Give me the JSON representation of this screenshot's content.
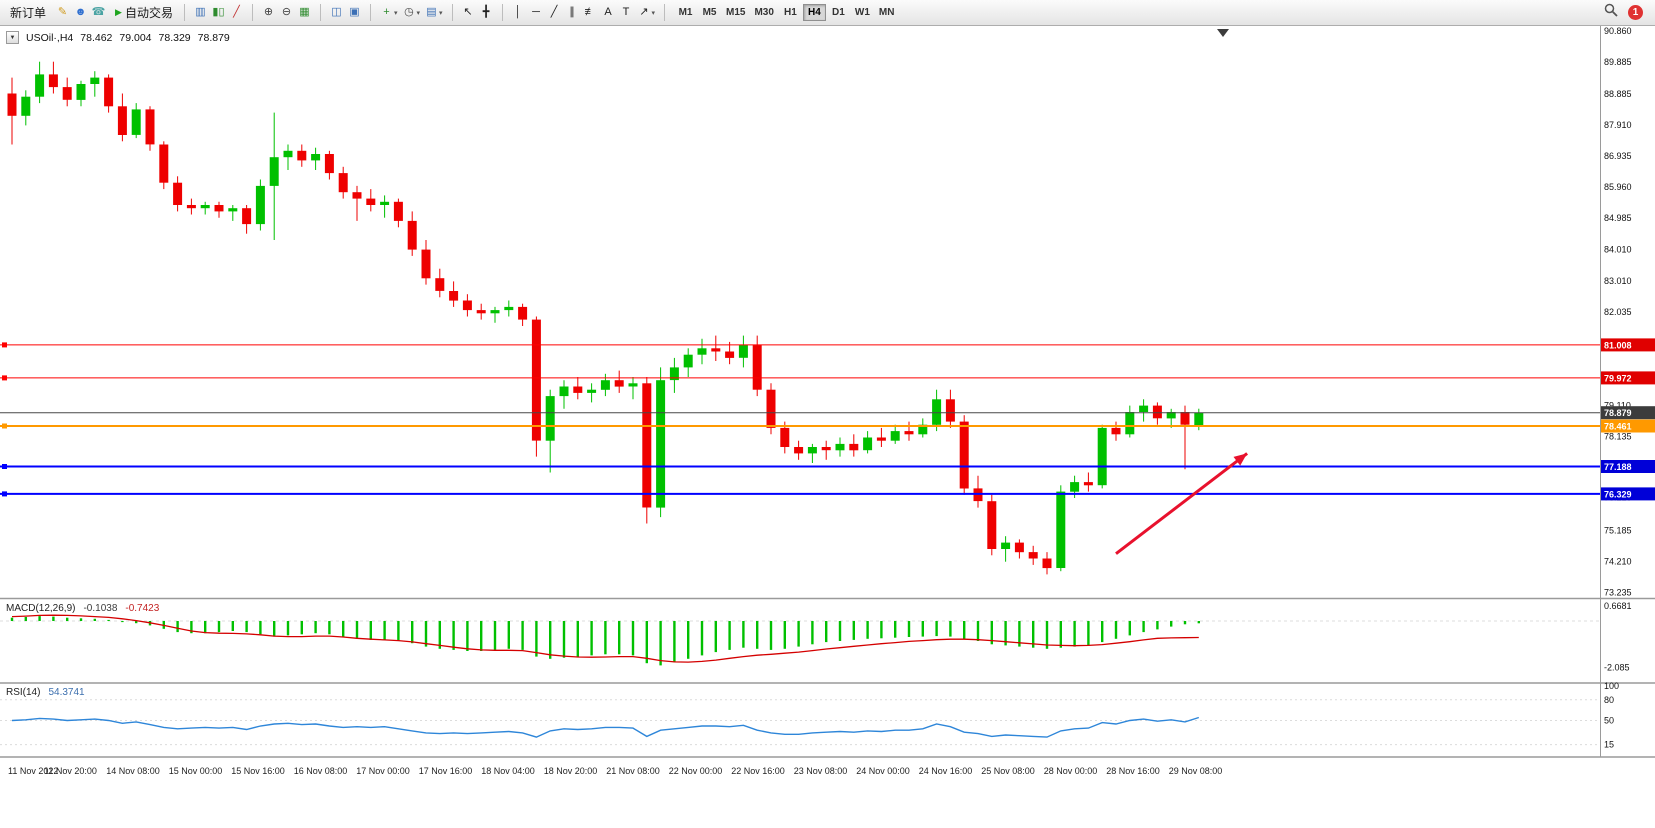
{
  "window": {
    "badge_count": "1"
  },
  "toolbar": {
    "new_order_label": "新订单",
    "auto_trading_label": "自动交易",
    "icon_groups": [
      {
        "name": "quick",
        "icons": [
          "metaeditor",
          "community",
          "support"
        ]
      },
      {
        "name": "chart-type",
        "icons": [
          "bar-chart",
          "candlesticks",
          "line-chart"
        ]
      },
      {
        "name": "zoom",
        "icons": [
          "zoom-in",
          "zoom-out",
          "tile-windows"
        ]
      },
      {
        "name": "layout",
        "icons": [
          "arrange-charts",
          "cascade-charts"
        ]
      },
      {
        "name": "chart-tools",
        "icons": [
          "new-chart",
          "period-clock",
          "chart-template"
        ]
      },
      {
        "name": "pointer",
        "icons": [
          "cursor",
          "crosshair"
        ]
      },
      {
        "name": "draw",
        "icons": [
          "vertical-line-tool",
          "horizontal-line-tool",
          "trendline-tool",
          "channel-tool",
          "fibonacci-tool",
          "text-tool",
          "text-label-tool",
          "arrows-tool"
        ]
      }
    ],
    "timeframes": [
      {
        "label": "M1",
        "active": false
      },
      {
        "label": "M5",
        "active": false
      },
      {
        "label": "M15",
        "active": false
      },
      {
        "label": "M30",
        "active": false
      },
      {
        "label": "H1",
        "active": false
      },
      {
        "label": "H4",
        "active": true
      },
      {
        "label": "D1",
        "active": false
      },
      {
        "label": "W1",
        "active": false
      },
      {
        "label": "MN",
        "active": false
      }
    ]
  },
  "header": {
    "symbol": "USOil·,H4",
    "open": "78.462",
    "high": "79.004",
    "low": "78.329",
    "close": "78.879"
  },
  "indicators": {
    "macd": {
      "label": "MACD(12,26,9)",
      "value1": "-0.1038",
      "value2": "-0.7423"
    },
    "rsi": {
      "label": "RSI(14)",
      "value": "54.3741"
    }
  },
  "colors": {
    "candle_up": "#00C000",
    "candle_down": "#EE0000",
    "macd_hist": "#00C000",
    "macd_signal": "#D40000",
    "rsi_line": "#2E86D9",
    "arrow": "#E8112D",
    "line_red": "#FF0000",
    "line_orange": "#FF9900",
    "line_blue": "#0000FF",
    "price_line": "#484848"
  },
  "chart_data": {
    "type": "candlestick",
    "symbol": "USOil",
    "period": "H4",
    "x_labels": [
      "11 Nov 2022",
      "11 Nov 20:00",
      "14 Nov 08:00",
      "15 Nov 00:00",
      "15 Nov 16:00",
      "16 Nov 08:00",
      "17 Nov 00:00",
      "17 Nov 16:00",
      "18 Nov 04:00",
      "18 Nov 20:00",
      "21 Nov 08:00",
      "22 Nov 00:00",
      "22 Nov 16:00",
      "23 Nov 08:00",
      "24 Nov 00:00",
      "24 Nov 16:00",
      "25 Nov 08:00",
      "28 Nov 00:00",
      "28 Nov 16:00",
      "29 Nov 08:00"
    ],
    "main": {
      "ylim": [
        73.06,
        91.02
      ],
      "price_labels": [
        "90.860",
        "89.885",
        "88.885",
        "87.910",
        "86.935",
        "85.960",
        "84.985",
        "84.010",
        "83.010",
        "82.035",
        "79.110",
        "78.135",
        "76.210",
        "75.185",
        "74.210",
        "73.235"
      ],
      "levels": [
        {
          "price": 81.008,
          "label": "81.008",
          "color": "#FF0000",
          "tag_bg": "#E00000",
          "width": 1,
          "marker": true
        },
        {
          "price": 79.972,
          "label": "79.972",
          "color": "#FF0000",
          "tag_bg": "#E00000",
          "width": 1,
          "marker": true
        },
        {
          "price": 78.879,
          "label": "78.879",
          "color": "#484848",
          "tag_bg": "#3C3C3C",
          "width": 1,
          "marker": false
        },
        {
          "price": 78.461,
          "label": "78.461",
          "color": "#FF9900",
          "tag_bg": "#FF9900",
          "width": 2,
          "marker": true
        },
        {
          "price": 77.188,
          "label": "77.188",
          "color": "#0000FF",
          "tag_bg": "#0000D8",
          "width": 2,
          "marker": true
        },
        {
          "price": 76.329,
          "label": "76.329",
          "color": "#0000FF",
          "tag_bg": "#0000D8",
          "width": 2,
          "marker": true
        }
      ],
      "arrow": {
        "from_index": 80,
        "from_price": 74.45,
        "to_index": 89.5,
        "to_price": 77.6
      },
      "candles": [
        [
          88.9,
          89.4,
          87.3,
          88.2
        ],
        [
          88.2,
          89.0,
          87.9,
          88.8
        ],
        [
          88.8,
          89.9,
          88.6,
          89.5
        ],
        [
          89.5,
          89.9,
          88.9,
          89.1
        ],
        [
          89.1,
          89.4,
          88.5,
          88.7
        ],
        [
          88.7,
          89.3,
          88.5,
          89.2
        ],
        [
          89.2,
          89.6,
          88.8,
          89.4
        ],
        [
          89.4,
          89.5,
          88.3,
          88.5
        ],
        [
          88.5,
          88.9,
          87.4,
          87.6
        ],
        [
          87.6,
          88.6,
          87.5,
          88.4
        ],
        [
          88.4,
          88.5,
          87.1,
          87.3
        ],
        [
          87.3,
          87.4,
          85.9,
          86.1
        ],
        [
          86.1,
          86.3,
          85.2,
          85.4
        ],
        [
          85.4,
          85.6,
          85.1,
          85.3
        ],
        [
          85.3,
          85.5,
          85.1,
          85.4
        ],
        [
          85.4,
          85.5,
          85.0,
          85.2
        ],
        [
          85.2,
          85.4,
          84.9,
          85.3
        ],
        [
          85.3,
          85.4,
          84.5,
          84.8
        ],
        [
          84.8,
          86.2,
          84.6,
          86.0
        ],
        [
          86.0,
          88.3,
          84.3,
          86.9
        ],
        [
          86.9,
          87.3,
          86.5,
          87.1
        ],
        [
          87.1,
          87.3,
          86.6,
          86.8
        ],
        [
          86.8,
          87.2,
          86.5,
          87.0
        ],
        [
          87.0,
          87.1,
          86.2,
          86.4
        ],
        [
          86.4,
          86.6,
          85.6,
          85.8
        ],
        [
          85.8,
          86.0,
          84.9,
          85.6
        ],
        [
          85.6,
          85.9,
          85.2,
          85.4
        ],
        [
          85.4,
          85.7,
          85.0,
          85.5
        ],
        [
          85.5,
          85.6,
          84.7,
          84.9
        ],
        [
          84.9,
          85.2,
          83.8,
          84.0
        ],
        [
          84.0,
          84.3,
          82.9,
          83.1
        ],
        [
          83.1,
          83.4,
          82.5,
          82.7
        ],
        [
          82.7,
          83.0,
          82.2,
          82.4
        ],
        [
          82.4,
          82.6,
          81.9,
          82.1
        ],
        [
          82.1,
          82.3,
          81.8,
          82.0
        ],
        [
          82.0,
          82.2,
          81.7,
          82.1
        ],
        [
          82.1,
          82.4,
          81.9,
          82.2
        ],
        [
          82.2,
          82.3,
          81.6,
          81.8
        ],
        [
          81.8,
          81.9,
          77.5,
          78.0
        ],
        [
          78.0,
          79.6,
          77.0,
          79.4
        ],
        [
          79.4,
          79.9,
          79.0,
          79.7
        ],
        [
          79.7,
          80.0,
          79.3,
          79.5
        ],
        [
          79.5,
          79.8,
          79.2,
          79.6
        ],
        [
          79.6,
          80.1,
          79.4,
          79.9
        ],
        [
          79.9,
          80.2,
          79.5,
          79.7
        ],
        [
          79.7,
          80.0,
          79.3,
          79.8
        ],
        [
          79.8,
          80.0,
          75.4,
          75.9
        ],
        [
          75.9,
          80.3,
          75.6,
          79.9
        ],
        [
          79.9,
          80.6,
          79.5,
          80.3
        ],
        [
          80.3,
          80.9,
          80.0,
          80.7
        ],
        [
          80.7,
          81.2,
          80.4,
          80.9
        ],
        [
          80.9,
          81.3,
          80.5,
          80.8
        ],
        [
          80.8,
          81.1,
          80.4,
          80.6
        ],
        [
          80.6,
          81.3,
          80.3,
          81.0
        ],
        [
          81.0,
          81.3,
          79.4,
          79.6
        ],
        [
          79.6,
          79.8,
          78.2,
          78.4
        ],
        [
          78.4,
          78.6,
          77.6,
          77.8
        ],
        [
          77.8,
          78.0,
          77.4,
          77.6
        ],
        [
          77.6,
          77.9,
          77.3,
          77.8
        ],
        [
          77.8,
          78.0,
          77.4,
          77.7
        ],
        [
          77.7,
          78.1,
          77.5,
          77.9
        ],
        [
          77.9,
          78.2,
          77.5,
          77.7
        ],
        [
          77.7,
          78.3,
          77.6,
          78.1
        ],
        [
          78.1,
          78.4,
          77.8,
          78.0
        ],
        [
          78.0,
          78.5,
          77.9,
          78.3
        ],
        [
          78.3,
          78.6,
          78.0,
          78.2
        ],
        [
          78.2,
          78.7,
          78.1,
          78.5
        ],
        [
          78.5,
          79.6,
          78.3,
          79.3
        ],
        [
          79.3,
          79.6,
          78.4,
          78.6
        ],
        [
          78.6,
          78.8,
          76.3,
          76.5
        ],
        [
          76.5,
          76.9,
          75.9,
          76.1
        ],
        [
          76.1,
          76.3,
          74.4,
          74.6
        ],
        [
          74.6,
          75.0,
          74.2,
          74.8
        ],
        [
          74.8,
          74.9,
          74.3,
          74.5
        ],
        [
          74.5,
          74.7,
          74.1,
          74.3
        ],
        [
          74.3,
          74.5,
          73.8,
          74.0
        ],
        [
          74.0,
          76.6,
          73.9,
          76.4
        ],
        [
          76.4,
          76.9,
          76.2,
          76.7
        ],
        [
          76.7,
          77.0,
          76.4,
          76.6
        ],
        [
          76.6,
          78.5,
          76.5,
          78.4
        ],
        [
          78.4,
          78.6,
          78.0,
          78.2
        ],
        [
          78.2,
          79.1,
          78.1,
          78.9
        ],
        [
          78.9,
          79.3,
          78.6,
          79.1
        ],
        [
          79.1,
          79.2,
          78.5,
          78.7
        ],
        [
          78.7,
          79.0,
          78.4,
          78.9
        ],
        [
          78.9,
          79.1,
          77.1,
          78.5
        ],
        [
          78.462,
          79.004,
          78.329,
          78.879
        ]
      ]
    },
    "macd": {
      "ylim": [
        -2.7,
        0.9
      ],
      "axis_labels": [
        "0.6681",
        "-2.085"
      ],
      "hist": [
        0.15,
        0.18,
        0.22,
        0.2,
        0.15,
        0.12,
        0.1,
        0.05,
        -0.05,
        -0.1,
        -0.2,
        -0.35,
        -0.5,
        -0.55,
        -0.55,
        -0.5,
        -0.45,
        -0.5,
        -0.6,
        -0.7,
        -0.65,
        -0.6,
        -0.55,
        -0.6,
        -0.7,
        -0.8,
        -0.85,
        -0.85,
        -0.9,
        -1.0,
        -1.15,
        -1.25,
        -1.3,
        -1.35,
        -1.35,
        -1.3,
        -1.25,
        -1.3,
        -1.6,
        -1.7,
        -1.65,
        -1.6,
        -1.55,
        -1.5,
        -1.5,
        -1.55,
        -1.9,
        -2.0,
        -1.85,
        -1.7,
        -1.55,
        -1.4,
        -1.3,
        -1.2,
        -1.25,
        -1.3,
        -1.25,
        -1.15,
        -1.05,
        -0.95,
        -0.9,
        -0.85,
        -0.8,
        -0.78,
        -0.75,
        -0.72,
        -0.7,
        -0.68,
        -0.7,
        -0.8,
        -0.9,
        -1.05,
        -1.1,
        -1.15,
        -1.2,
        -1.25,
        -1.2,
        -1.15,
        -1.1,
        -0.95,
        -0.8,
        -0.65,
        -0.5,
        -0.38,
        -0.25,
        -0.15,
        -0.1038
      ],
      "signal": [
        0.2,
        0.22,
        0.25,
        0.26,
        0.25,
        0.23,
        0.2,
        0.16,
        0.1,
        0.02,
        -0.08,
        -0.2,
        -0.33,
        -0.45,
        -0.52,
        -0.55,
        -0.56,
        -0.58,
        -0.62,
        -0.68,
        -0.7,
        -0.7,
        -0.68,
        -0.68,
        -0.72,
        -0.78,
        -0.82,
        -0.85,
        -0.88,
        -0.94,
        -1.02,
        -1.1,
        -1.18,
        -1.25,
        -1.3,
        -1.32,
        -1.32,
        -1.33,
        -1.42,
        -1.52,
        -1.58,
        -1.62,
        -1.63,
        -1.62,
        -1.6,
        -1.6,
        -1.68,
        -1.78,
        -1.84,
        -1.85,
        -1.82,
        -1.76,
        -1.68,
        -1.6,
        -1.54,
        -1.5,
        -1.45,
        -1.4,
        -1.33,
        -1.26,
        -1.2,
        -1.14,
        -1.08,
        -1.02,
        -0.97,
        -0.92,
        -0.88,
        -0.84,
        -0.82,
        -0.82,
        -0.84,
        -0.88,
        -0.93,
        -0.98,
        -1.03,
        -1.08,
        -1.1,
        -1.11,
        -1.1,
        -1.06,
        -1.0,
        -0.93,
        -0.85,
        -0.78,
        -0.76,
        -0.75,
        -0.7423
      ]
    },
    "rsi": {
      "ylim": [
        0,
        100
      ],
      "axis_labels": [
        "100",
        "80",
        "50",
        "15"
      ],
      "levels": [
        80,
        50,
        15
      ],
      "values": [
        50,
        51,
        53,
        52,
        50,
        51,
        52,
        50,
        46,
        48,
        44,
        40,
        38,
        39,
        40,
        39,
        40,
        37,
        42,
        45,
        46,
        44,
        45,
        42,
        40,
        41,
        40,
        41,
        38,
        35,
        32,
        31,
        32,
        31,
        32,
        33,
        34,
        32,
        26,
        35,
        38,
        37,
        38,
        40,
        40,
        39,
        27,
        36,
        38,
        40,
        42,
        42,
        41,
        43,
        36,
        32,
        30,
        30,
        32,
        33,
        34,
        33,
        35,
        34,
        36,
        36,
        38,
        45,
        41,
        33,
        31,
        27,
        29,
        28,
        27,
        26,
        35,
        38,
        39,
        47,
        45,
        50,
        52,
        49,
        51,
        48,
        54.37
      ]
    }
  }
}
